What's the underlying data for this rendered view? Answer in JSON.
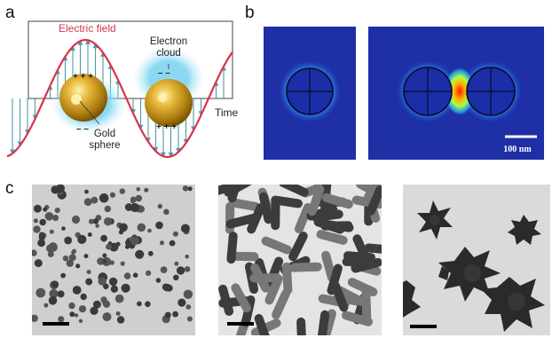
{
  "panels": {
    "a": {
      "label": "a",
      "electric_field_label": "Electric field",
      "electron_cloud_label": "Electron cloud",
      "gold_sphere_label": "Gold sphere",
      "time_label": "Time",
      "charges_top_left": "+ + +",
      "charges_bottom_left": "– –",
      "charges_top_right": "– –",
      "charges_bottom_right": "+ + +",
      "colors": {
        "field_curve": "#d8344a",
        "arrows": "#4c9aa6",
        "cloud": "#7fd4ef",
        "gold": "#c99a17"
      }
    },
    "b": {
      "label": "b",
      "scale_bar_label": "100 nm",
      "colors": {
        "background": "#1f2fa6",
        "hotspot": "#ff1a00"
      }
    },
    "c": {
      "label": "c",
      "images": [
        "spheres",
        "rods",
        "stars"
      ]
    }
  }
}
